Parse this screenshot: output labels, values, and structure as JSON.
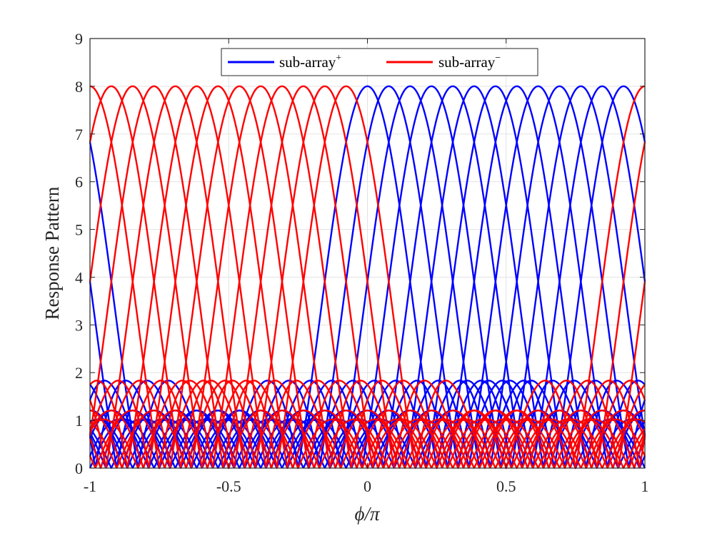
{
  "chart_data": {
    "type": "line",
    "xlabel": "ϕ/π",
    "ylabel": "Response Pattern",
    "xlim": [
      -1,
      1
    ],
    "ylim": [
      0,
      9
    ],
    "x_ticks": [
      "-1",
      "-0.5",
      "0",
      "0.5",
      "1"
    ],
    "y_ticks": [
      "0",
      "1",
      "2",
      "3",
      "4",
      "5",
      "6",
      "7",
      "8",
      "9"
    ],
    "grid": true,
    "legend_position": "top-center",
    "beam_model": {
      "elements": 8,
      "peak_value": 8,
      "beams_per_subarray": 13,
      "beam_spacing": 0.0769,
      "x_samples": 1200
    },
    "series": [
      {
        "name": "sub-array",
        "name_sup": "+",
        "color": "#0000ff",
        "beam_peaks_x": [
          0,
          0.0769,
          0.1538,
          0.2308,
          0.3077,
          0.3846,
          0.4615,
          0.5385,
          0.6154,
          0.6923,
          0.7692,
          0.8462,
          0.9231
        ]
      },
      {
        "name": "sub-array",
        "name_sup": "−",
        "color": "#ff0000",
        "beam_peaks_x": [
          -1,
          -0.9231,
          -0.8462,
          -0.7692,
          -0.6923,
          -0.6154,
          -0.5385,
          -0.4615,
          -0.3846,
          -0.3077,
          -0.2308,
          -0.1538,
          -0.0769
        ]
      }
    ]
  }
}
